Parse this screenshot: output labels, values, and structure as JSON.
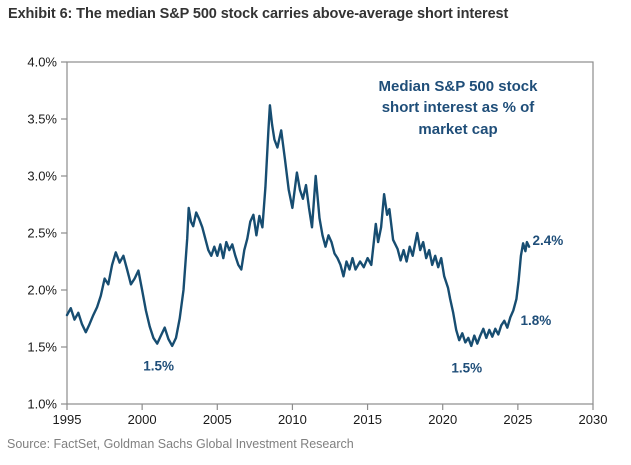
{
  "exhibit": {
    "title": "Exhibit 6: The median S&P 500 stock carries above-average short interest",
    "source": "Source: FactSet, Goldman Sachs Global Investment Research"
  },
  "colors": {
    "line": "#174D71",
    "callout_text": "#1F4E79",
    "annotation_text": "#1F4E79",
    "axis": "#8C8C8C",
    "tick_label": "#1A1A1A",
    "title_text": "#333333",
    "source_text": "#808080"
  },
  "chart_data": {
    "type": "line",
    "title": "Median S&P 500 stock short interest as % of market cap",
    "callout": "Median S&P 500 stock\nshort interest as % of\nmarket cap",
    "xlabel": "",
    "ylabel": "",
    "xlim": [
      1995,
      2030
    ],
    "ylim": [
      1.0,
      4.0
    ],
    "grid": false,
    "xticks": [
      {
        "v": 1995,
        "label": "1995"
      },
      {
        "v": 2000,
        "label": "2000"
      },
      {
        "v": 2005,
        "label": "2005"
      },
      {
        "v": 2010,
        "label": "2010"
      },
      {
        "v": 2015,
        "label": "2015"
      },
      {
        "v": 2020,
        "label": "2020"
      },
      {
        "v": 2025,
        "label": "2025"
      },
      {
        "v": 2030,
        "label": "2030"
      }
    ],
    "yticks": [
      {
        "v": 1.0,
        "label": "1.0%"
      },
      {
        "v": 1.5,
        "label": "1.5%"
      },
      {
        "v": 2.0,
        "label": "2.0%"
      },
      {
        "v": 2.5,
        "label": "2.5%"
      },
      {
        "v": 3.0,
        "label": "3.0%"
      },
      {
        "v": 3.5,
        "label": "3.5%"
      },
      {
        "v": 4.0,
        "label": "4.0%"
      }
    ],
    "annotations": [
      {
        "label": "1.5%",
        "year": 2001.1,
        "value": 1.33
      },
      {
        "label": "1.5%",
        "year": 2021.6,
        "value": 1.31
      },
      {
        "label": "1.8%",
        "year": 2026.2,
        "value": 1.73
      },
      {
        "label": "2.4%",
        "year": 2027.0,
        "value": 2.43
      }
    ],
    "series": [
      {
        "name": "Median S&P 500 stock short interest as % of market cap",
        "points": [
          [
            1995.0,
            1.78
          ],
          [
            1995.25,
            1.84
          ],
          [
            1995.5,
            1.74
          ],
          [
            1995.75,
            1.8
          ],
          [
            1996.0,
            1.7
          ],
          [
            1996.25,
            1.63
          ],
          [
            1996.5,
            1.7
          ],
          [
            1996.75,
            1.78
          ],
          [
            1997.0,
            1.85
          ],
          [
            1997.25,
            1.95
          ],
          [
            1997.5,
            2.1
          ],
          [
            1997.75,
            2.05
          ],
          [
            1998.0,
            2.22
          ],
          [
            1998.25,
            2.33
          ],
          [
            1998.5,
            2.24
          ],
          [
            1998.75,
            2.3
          ],
          [
            1999.0,
            2.18
          ],
          [
            1999.25,
            2.05
          ],
          [
            1999.5,
            2.1
          ],
          [
            1999.75,
            2.17
          ],
          [
            2000.0,
            2.0
          ],
          [
            2000.25,
            1.82
          ],
          [
            2000.5,
            1.68
          ],
          [
            2000.75,
            1.58
          ],
          [
            2001.0,
            1.53
          ],
          [
            2001.25,
            1.6
          ],
          [
            2001.5,
            1.67
          ],
          [
            2001.75,
            1.57
          ],
          [
            2002.0,
            1.51
          ],
          [
            2002.25,
            1.58
          ],
          [
            2002.5,
            1.75
          ],
          [
            2002.75,
            2.0
          ],
          [
            2003.0,
            2.45
          ],
          [
            2003.1,
            2.72
          ],
          [
            2003.25,
            2.6
          ],
          [
            2003.4,
            2.56
          ],
          [
            2003.6,
            2.68
          ],
          [
            2003.8,
            2.62
          ],
          [
            2004.0,
            2.55
          ],
          [
            2004.2,
            2.45
          ],
          [
            2004.4,
            2.35
          ],
          [
            2004.6,
            2.3
          ],
          [
            2004.8,
            2.38
          ],
          [
            2005.0,
            2.3
          ],
          [
            2005.2,
            2.4
          ],
          [
            2005.4,
            2.28
          ],
          [
            2005.6,
            2.42
          ],
          [
            2005.8,
            2.35
          ],
          [
            2006.0,
            2.4
          ],
          [
            2006.2,
            2.3
          ],
          [
            2006.4,
            2.22
          ],
          [
            2006.6,
            2.18
          ],
          [
            2006.8,
            2.35
          ],
          [
            2007.0,
            2.45
          ],
          [
            2007.2,
            2.6
          ],
          [
            2007.4,
            2.66
          ],
          [
            2007.6,
            2.48
          ],
          [
            2007.8,
            2.65
          ],
          [
            2008.0,
            2.55
          ],
          [
            2008.2,
            2.9
          ],
          [
            2008.4,
            3.4
          ],
          [
            2008.5,
            3.62
          ],
          [
            2008.65,
            3.45
          ],
          [
            2008.8,
            3.32
          ],
          [
            2009.0,
            3.25
          ],
          [
            2009.25,
            3.4
          ],
          [
            2009.5,
            3.15
          ],
          [
            2009.75,
            2.88
          ],
          [
            2010.0,
            2.72
          ],
          [
            2010.3,
            3.03
          ],
          [
            2010.5,
            2.88
          ],
          [
            2010.7,
            2.8
          ],
          [
            2010.9,
            2.92
          ],
          [
            2011.1,
            2.72
          ],
          [
            2011.3,
            2.55
          ],
          [
            2011.55,
            3.0
          ],
          [
            2011.8,
            2.63
          ],
          [
            2012.0,
            2.48
          ],
          [
            2012.2,
            2.38
          ],
          [
            2012.4,
            2.48
          ],
          [
            2012.6,
            2.42
          ],
          [
            2012.8,
            2.32
          ],
          [
            2013.0,
            2.28
          ],
          [
            2013.2,
            2.22
          ],
          [
            2013.4,
            2.12
          ],
          [
            2013.6,
            2.25
          ],
          [
            2013.8,
            2.18
          ],
          [
            2014.0,
            2.28
          ],
          [
            2014.2,
            2.18
          ],
          [
            2014.5,
            2.25
          ],
          [
            2014.75,
            2.2
          ],
          [
            2015.0,
            2.28
          ],
          [
            2015.25,
            2.22
          ],
          [
            2015.55,
            2.58
          ],
          [
            2015.7,
            2.42
          ],
          [
            2015.9,
            2.55
          ],
          [
            2016.1,
            2.84
          ],
          [
            2016.3,
            2.66
          ],
          [
            2016.45,
            2.71
          ],
          [
            2016.7,
            2.44
          ],
          [
            2017.0,
            2.36
          ],
          [
            2017.2,
            2.26
          ],
          [
            2017.4,
            2.35
          ],
          [
            2017.6,
            2.25
          ],
          [
            2017.8,
            2.38
          ],
          [
            2018.0,
            2.3
          ],
          [
            2018.3,
            2.5
          ],
          [
            2018.5,
            2.35
          ],
          [
            2018.7,
            2.42
          ],
          [
            2018.9,
            2.28
          ],
          [
            2019.1,
            2.35
          ],
          [
            2019.3,
            2.22
          ],
          [
            2019.5,
            2.3
          ],
          [
            2019.7,
            2.2
          ],
          [
            2019.9,
            2.28
          ],
          [
            2020.1,
            2.12
          ],
          [
            2020.35,
            2.02
          ],
          [
            2020.5,
            1.92
          ],
          [
            2020.7,
            1.8
          ],
          [
            2020.9,
            1.65
          ],
          [
            2021.1,
            1.56
          ],
          [
            2021.3,
            1.62
          ],
          [
            2021.5,
            1.54
          ],
          [
            2021.7,
            1.58
          ],
          [
            2021.9,
            1.51
          ],
          [
            2022.1,
            1.6
          ],
          [
            2022.3,
            1.53
          ],
          [
            2022.5,
            1.6
          ],
          [
            2022.7,
            1.66
          ],
          [
            2022.9,
            1.58
          ],
          [
            2023.1,
            1.65
          ],
          [
            2023.3,
            1.59
          ],
          [
            2023.5,
            1.66
          ],
          [
            2023.7,
            1.61
          ],
          [
            2023.9,
            1.69
          ],
          [
            2024.1,
            1.73
          ],
          [
            2024.3,
            1.67
          ],
          [
            2024.5,
            1.76
          ],
          [
            2024.7,
            1.82
          ],
          [
            2024.9,
            1.92
          ],
          [
            2025.05,
            2.08
          ],
          [
            2025.2,
            2.3
          ],
          [
            2025.35,
            2.41
          ],
          [
            2025.5,
            2.34
          ],
          [
            2025.6,
            2.42
          ],
          [
            2025.75,
            2.38
          ]
        ]
      }
    ]
  }
}
